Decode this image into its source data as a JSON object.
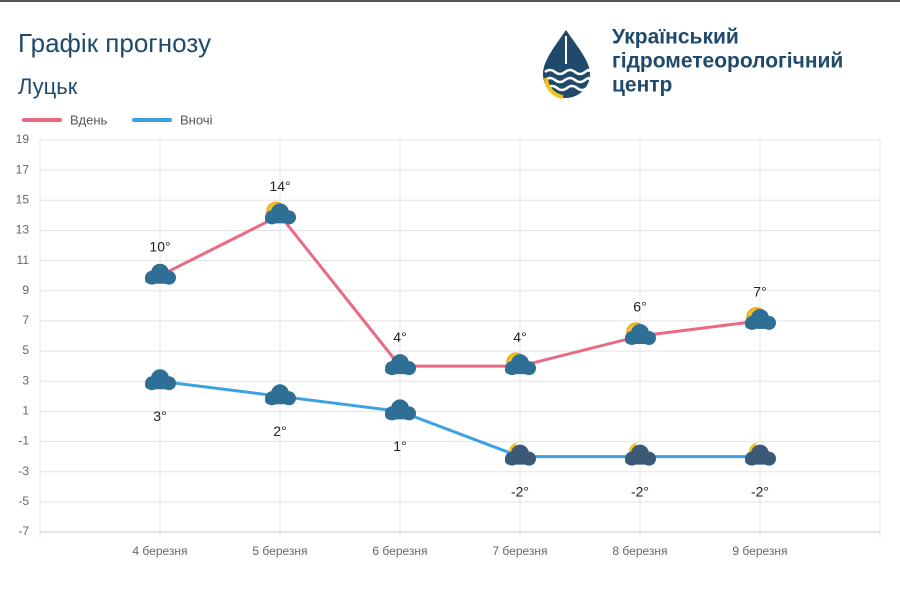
{
  "header": {
    "title": "Графік прогнозу",
    "city": "Луцьк",
    "org": [
      "Український",
      "гідрометеорологічний",
      "центр"
    ]
  },
  "chart_data": {
    "type": "line",
    "categories": [
      "4 березня",
      "5 березня",
      "6 березня",
      "7 березня",
      "8 березня",
      "9 березня"
    ],
    "series": [
      {
        "name": "Вдень",
        "color": "#ea6a84",
        "values": [
          10,
          14,
          4,
          4,
          6,
          7
        ],
        "value_labels": [
          "10°",
          "14°",
          "4°",
          "4°",
          "6°",
          "7°"
        ]
      },
      {
        "name": "Вночі",
        "color": "#3ea2e0",
        "values": [
          3,
          2,
          1,
          -2,
          -2,
          -2
        ],
        "value_labels": [
          "3°",
          "2°",
          "1°",
          "-2°",
          "-2°",
          "-2°"
        ]
      }
    ],
    "ylim": [
      -7,
      19
    ],
    "yticks": [
      -7,
      -5,
      -3,
      -1,
      1,
      3,
      5,
      7,
      9,
      11,
      13,
      15,
      17,
      19
    ],
    "grid": true
  }
}
